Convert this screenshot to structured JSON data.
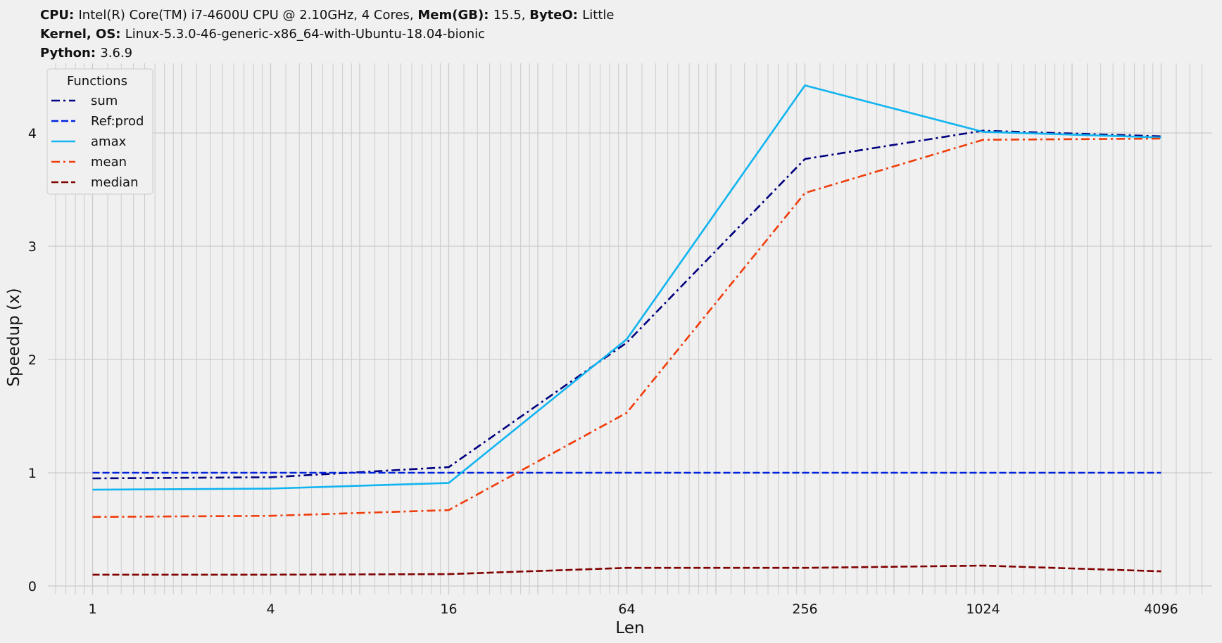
{
  "header": {
    "row1": [
      {
        "key": "CPU",
        "sep": ": ",
        "value": "Intel(R) Core(TM) i7-4600U CPU @ 2.10GHz, 4 Cores, "
      },
      {
        "key": "Mem(GB)",
        "sep": ": ",
        "value": "15.5, "
      },
      {
        "key": "ByteO",
        "sep": ": ",
        "value": "Little"
      }
    ],
    "row2": [
      {
        "key": "Kernel, OS",
        "sep": ": ",
        "value": "Linux-5.3.0-46-generic-x86_64-with-Ubuntu-18.04-bionic"
      }
    ],
    "row3": [
      {
        "key": "Python",
        "sep": ": ",
        "value": "3.6.9"
      }
    ]
  },
  "chart_data": {
    "type": "line",
    "xlabel": "Len",
    "ylabel": "Speedup (x)",
    "xscale": "log2",
    "x": [
      1,
      4,
      16,
      64,
      256,
      1024,
      4096
    ],
    "xticks": [
      "1",
      "4",
      "16",
      "64",
      "256",
      "1024",
      "4096"
    ],
    "yticks": [
      "0",
      "1",
      "2",
      "3",
      "4"
    ],
    "ylim": [
      -0.1,
      4.55
    ],
    "grid": true,
    "legend": {
      "title": "Functions",
      "placement": "top-left"
    },
    "series": [
      {
        "name": "sum",
        "color": "#00007f",
        "dash": "dashdot",
        "values": [
          0.95,
          0.96,
          1.05,
          2.15,
          3.77,
          4.02,
          3.97
        ]
      },
      {
        "name": "Ref:prod",
        "color": "#0022dd",
        "dash": "dashed",
        "values": [
          1.0,
          1.0,
          1.0,
          1.0,
          1.0,
          1.0,
          1.0
        ]
      },
      {
        "name": "amax",
        "color": "#10b4f0",
        "dash": "solid",
        "values": [
          0.85,
          0.86,
          0.91,
          2.18,
          4.42,
          4.01,
          3.96
        ]
      },
      {
        "name": "mean",
        "color": "#f03c0a",
        "dash": "dashdot",
        "values": [
          0.61,
          0.62,
          0.67,
          1.53,
          3.47,
          3.94,
          3.95
        ]
      },
      {
        "name": "median",
        "color": "#800000",
        "dash": "dashed",
        "values": [
          0.1,
          0.1,
          0.105,
          0.16,
          0.16,
          0.18,
          0.13
        ]
      }
    ]
  }
}
